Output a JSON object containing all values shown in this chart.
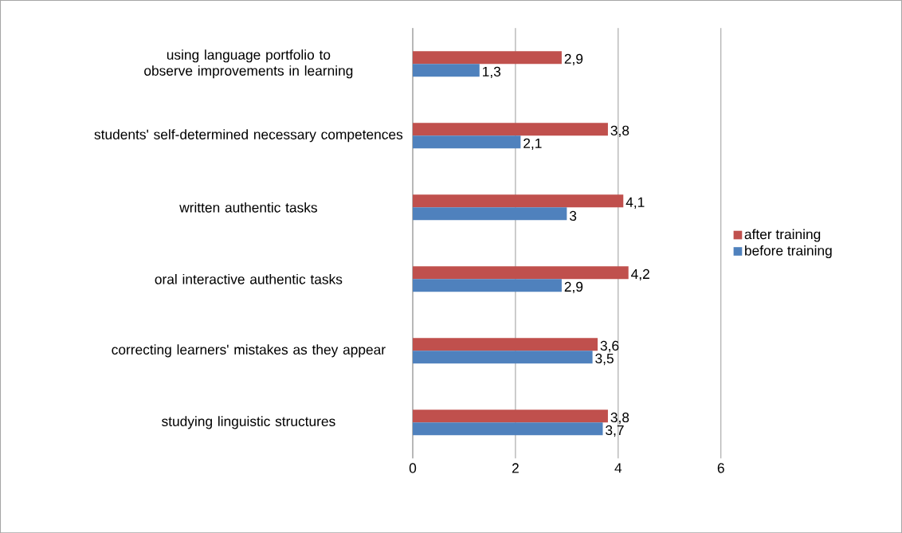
{
  "chart_data": {
    "type": "bar",
    "orientation": "horizontal",
    "categories": [
      "using language portfolio to observe improvements in learning",
      "students' self-determined necessary competences",
      "written authentic tasks",
      "oral interactive authentic tasks",
      "correcting learners' mistakes as they appear",
      "studying linguistic structures"
    ],
    "series": [
      {
        "name": "after training",
        "color": "#c0504d",
        "values": [
          2.9,
          3.8,
          4.1,
          4.2,
          3.6,
          3.8
        ],
        "value_labels": [
          "2,9",
          "3,8",
          "4,1",
          "4,2",
          "3,6",
          "3,8"
        ]
      },
      {
        "name": "before training",
        "color": "#4f81bd",
        "values": [
          1.3,
          2.1,
          3,
          2.9,
          3.5,
          3.7
        ],
        "value_labels": [
          "1,3",
          "2,1",
          "3",
          "2,9",
          "3,5",
          "3,7"
        ]
      }
    ],
    "xlim": [
      0,
      6
    ],
    "xticks": [
      0,
      2,
      4,
      6
    ],
    "grid": "x",
    "legend": "right"
  }
}
